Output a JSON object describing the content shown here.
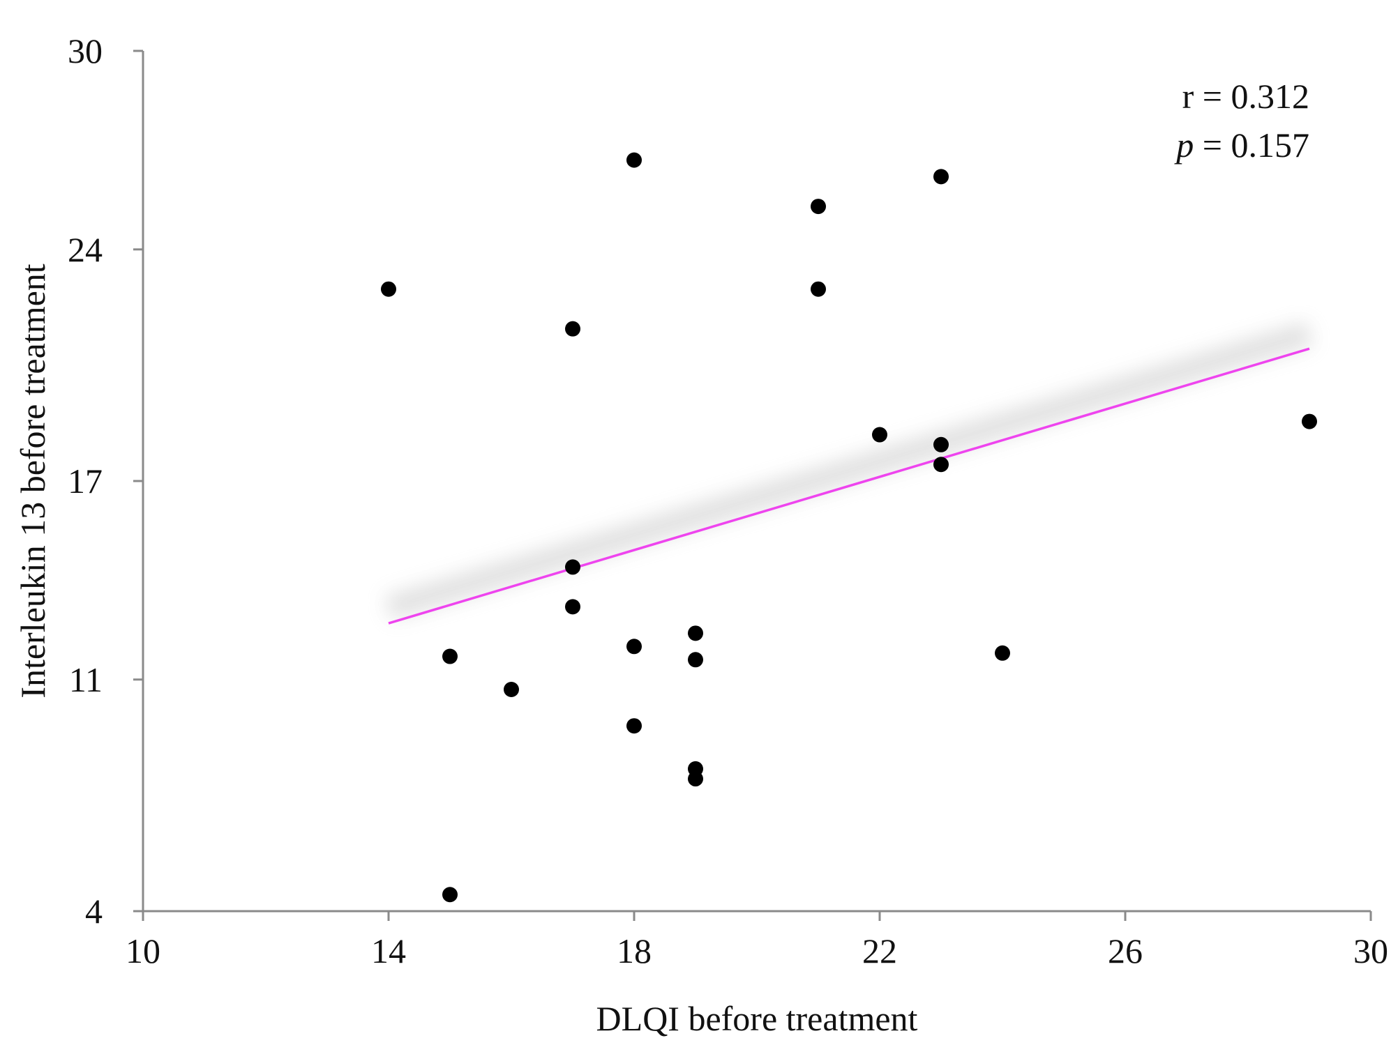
{
  "chart_data": {
    "type": "scatter",
    "title": "",
    "xlabel": "DLQI before treatment",
    "ylabel": "Interleukin 13 before treatment",
    "xlim": [
      10,
      30
    ],
    "ylim": [
      4,
      30
    ],
    "xticks": [
      "10",
      "14",
      "18",
      "22",
      "26",
      "30"
    ],
    "yticks": [
      "4",
      "11",
      "17",
      "24",
      "30"
    ],
    "grid": false,
    "points": [
      {
        "x": 14,
        "y": 22.8
      },
      {
        "x": 15,
        "y": 11.7
      },
      {
        "x": 15,
        "y": 4.5
      },
      {
        "x": 16,
        "y": 10.7
      },
      {
        "x": 17,
        "y": 21.6
      },
      {
        "x": 17,
        "y": 14.4
      },
      {
        "x": 17,
        "y": 13.2
      },
      {
        "x": 18,
        "y": 26.7
      },
      {
        "x": 18,
        "y": 12.0
      },
      {
        "x": 18,
        "y": 9.6
      },
      {
        "x": 19,
        "y": 12.4
      },
      {
        "x": 19,
        "y": 11.6
      },
      {
        "x": 19,
        "y": 8.3
      },
      {
        "x": 19,
        "y": 8.0
      },
      {
        "x": 21,
        "y": 25.3
      },
      {
        "x": 21,
        "y": 22.8
      },
      {
        "x": 22,
        "y": 18.4
      },
      {
        "x": 23,
        "y": 26.2
      },
      {
        "x": 23,
        "y": 18.1
      },
      {
        "x": 23,
        "y": 17.5
      },
      {
        "x": 24,
        "y": 11.8
      },
      {
        "x": 29,
        "y": 18.8
      }
    ],
    "trendline": {
      "x": [
        14,
        29
      ],
      "y": [
        12.7,
        21.0
      ],
      "color": "#ee44ee"
    },
    "annotation": {
      "r_label": "r = 0.312",
      "p_symbol": "p",
      "p_value_text": " = 0.157"
    }
  }
}
